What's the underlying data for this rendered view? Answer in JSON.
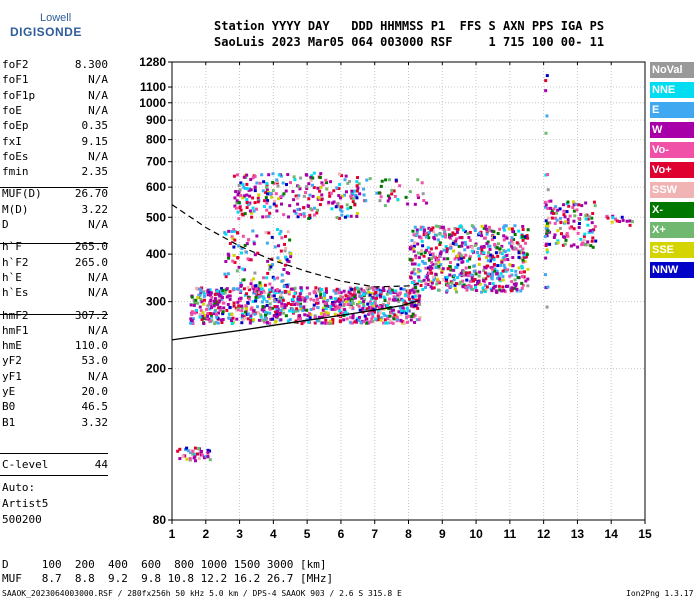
{
  "logo": {
    "line1": "Lowell",
    "line2": "DIGISONDE"
  },
  "header": {
    "line1": "Station YYYY DAY   DDD HHMMSS P1  FFS S AXN PPS IGA PS",
    "line2": "SaoLuis 2023 Mar05 064 003000 RSF     1 715 100 00- 11"
  },
  "params": [
    {
      "name": "foF2",
      "value": "8.300"
    },
    {
      "name": "foF1",
      "value": "N/A"
    },
    {
      "name": "foF1p",
      "value": "N/A"
    },
    {
      "name": "foE",
      "value": "N/A"
    },
    {
      "name": "foEp",
      "value": "0.35"
    },
    {
      "name": "fxI",
      "value": "9.15"
    },
    {
      "name": "foEs",
      "value": "N/A"
    },
    {
      "name": "fmin",
      "value": "2.35"
    },
    {
      "name": "MUF(D)",
      "value": "26.70"
    },
    {
      "name": "M(D)",
      "value": "3.22"
    },
    {
      "name": "D",
      "value": "N/A"
    },
    {
      "name": "h`F",
      "value": "265.0"
    },
    {
      "name": "h`F2",
      "value": "265.0"
    },
    {
      "name": "h`E",
      "value": "N/A"
    },
    {
      "name": "h`Es",
      "value": "N/A"
    },
    {
      "name": "hmF2",
      "value": "307.2"
    },
    {
      "name": "hmF1",
      "value": "N/A"
    },
    {
      "name": "hmE",
      "value": "110.0"
    },
    {
      "name": "yF2",
      "value": "53.0"
    },
    {
      "name": "yF1",
      "value": "N/A"
    },
    {
      "name": "yE",
      "value": "20.0"
    },
    {
      "name": "B0",
      "value": "46.5"
    },
    {
      "name": "B1",
      "value": "3.32"
    }
  ],
  "clevel": {
    "name": "C-level",
    "value": "44"
  },
  "auto": {
    "line1": "Auto:",
    "line2": "Artist5",
    "line3": "500200"
  },
  "legend": [
    {
      "label": "NoVal",
      "color": "#999999"
    },
    {
      "label": "NNE",
      "color": "#00dcf0"
    },
    {
      "label": "E",
      "color": "#40a8f0"
    },
    {
      "label": "W",
      "color": "#a800a8"
    },
    {
      "label": "Vo-",
      "color": "#f050a8"
    },
    {
      "label": "Vo+",
      "color": "#e00030"
    },
    {
      "label": "SSW",
      "color": "#f0b4b4"
    },
    {
      "label": "X-",
      "color": "#007800"
    },
    {
      "label": "X+",
      "color": "#70b870"
    },
    {
      "label": "SSE",
      "color": "#d4d400"
    },
    {
      "label": "NNW",
      "color": "#0000c8"
    }
  ],
  "footer": {
    "d_row": "D     100  200  400  600  800 1000 1500 3000 [km]",
    "muf_row": "MUF   8.7  8.8  9.2  9.8 10.8 12.2 16.2 26.7 [MHz]",
    "file_info": "SAAOK_2023064003000.RSF / 280fx256h 50 kHz 5.0 km / DPS-4 SAAOK 903 / 2.6 S 315.8 E",
    "version": "Ion2Png 1.3.17"
  },
  "chart_data": {
    "type": "scatter",
    "title": "",
    "xlabel": "",
    "ylabel": "",
    "x_ticks": [
      1,
      2,
      3,
      4,
      5,
      6,
      7,
      8,
      9,
      10,
      11,
      12,
      13,
      14,
      15
    ],
    "y_ticks": [
      80,
      200,
      300,
      400,
      500,
      600,
      700,
      800,
      900,
      1000,
      1100,
      1280
    ],
    "xlim": [
      1,
      15
    ],
    "ylim": [
      80,
      1280
    ],
    "y_scale": "log",
    "grid": true,
    "profile_curve": [
      [
        1,
        238
      ],
      [
        2,
        245
      ],
      [
        3,
        252
      ],
      [
        4,
        260
      ],
      [
        5,
        268
      ],
      [
        6,
        276
      ],
      [
        7,
        285
      ],
      [
        7.8,
        293
      ],
      [
        8.3,
        302
      ]
    ],
    "dashed_curve": [
      [
        1,
        540
      ],
      [
        2,
        470
      ],
      [
        3,
        420
      ],
      [
        4,
        385
      ],
      [
        5,
        360
      ],
      [
        6,
        340
      ],
      [
        7,
        328
      ],
      [
        8,
        330
      ],
      [
        8.3,
        335
      ]
    ],
    "clusters": [
      {
        "x": [
          1.5,
          8.3
        ],
        "y": [
          265,
          330
        ],
        "n": 900,
        "label": "F-trace low"
      },
      {
        "x": [
          8.0,
          11.5
        ],
        "y": [
          320,
          480
        ],
        "n": 600,
        "label": "F-trace rising"
      },
      {
        "x": [
          12.0,
          13.5
        ],
        "y": [
          420,
          560
        ],
        "n": 120,
        "label": "F-trace high"
      },
      {
        "x": [
          2.8,
          6.5
        ],
        "y": [
          500,
          660
        ],
        "n": 260,
        "label": "second hop"
      },
      {
        "x": [
          6.5,
          8.5
        ],
        "y": [
          540,
          640
        ],
        "n": 40,
        "label": "second hop tail"
      },
      {
        "x": [
          1.1,
          2.1
        ],
        "y": [
          115,
          125
        ],
        "n": 40,
        "label": "low echoes"
      },
      {
        "x": [
          2.5,
          4.5
        ],
        "y": [
          330,
          470
        ],
        "n": 120,
        "label": "spread F"
      },
      {
        "x": [
          12.0,
          12.1
        ],
        "y": [
          290,
          1280
        ],
        "n": 25,
        "label": "vertical spike"
      },
      {
        "x": [
          13.8,
          14.6
        ],
        "y": [
          480,
          510
        ],
        "n": 15,
        "label": "high freq"
      }
    ]
  }
}
